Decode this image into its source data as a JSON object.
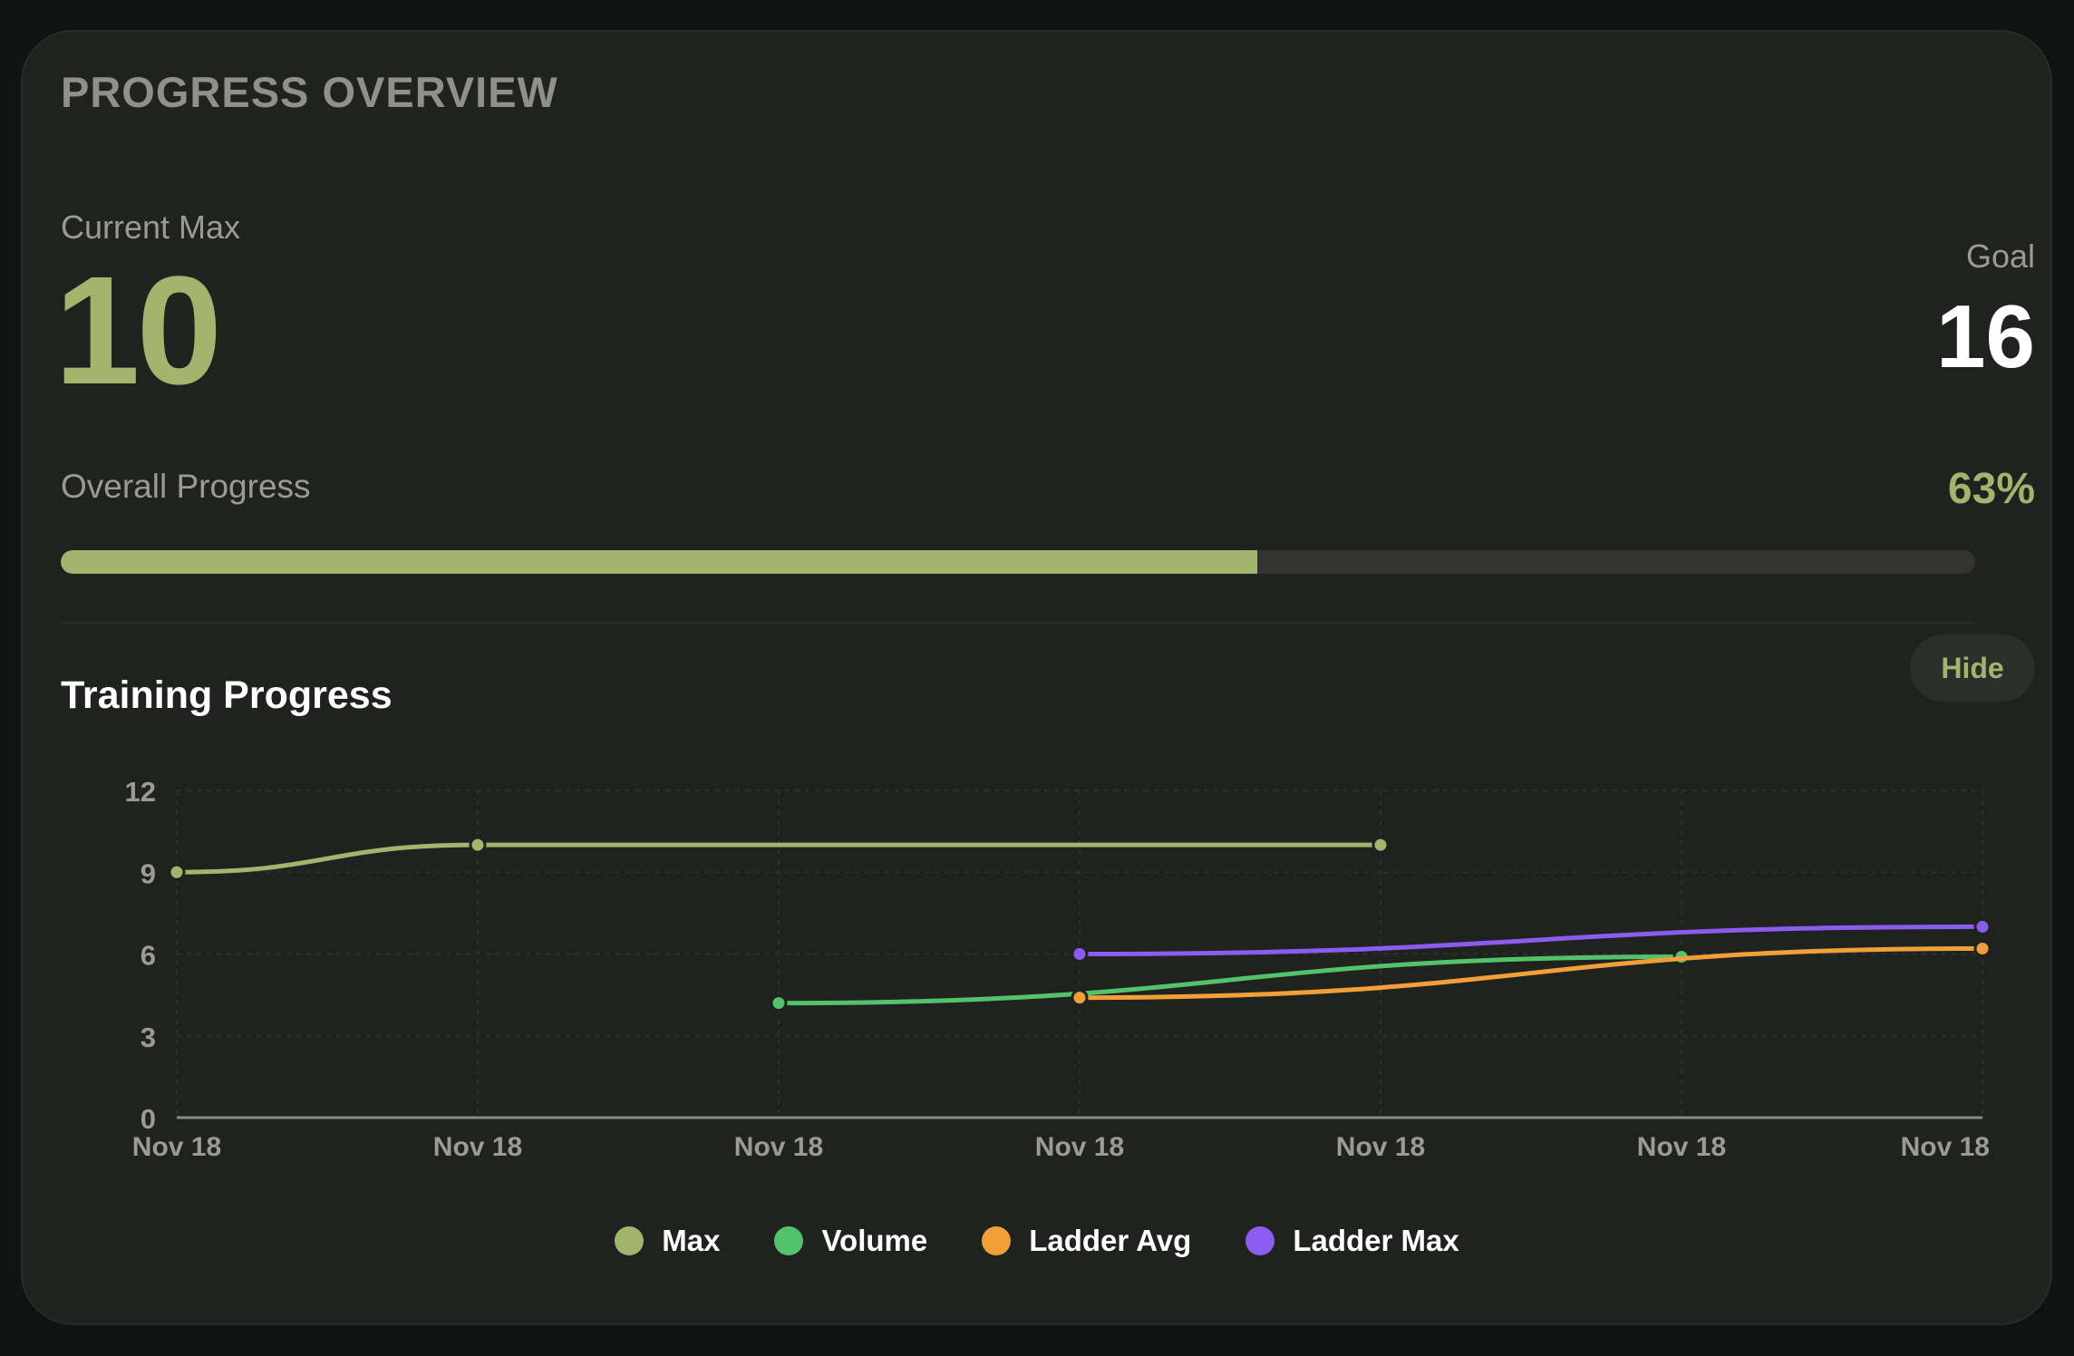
{
  "overview": {
    "title": "PROGRESS OVERVIEW",
    "current_max_label": "Current Max",
    "current_max_value": "10",
    "goal_label": "Goal",
    "goal_value": "16",
    "overall_progress_label": "Overall Progress",
    "overall_progress_text": "63%",
    "overall_progress_fraction": 0.625
  },
  "training": {
    "title": "Training Progress",
    "hide_label": "Hide"
  },
  "colors": {
    "accent": "#a3b56d",
    "max": "#a3b56d",
    "volume": "#52c26b",
    "ladder_avg": "#f0a037",
    "ladder_max": "#8a5cf0"
  },
  "chart_data": {
    "type": "line",
    "categories": [
      "Nov 18",
      "Nov 18",
      "Nov 18",
      "Nov 18",
      "Nov 18",
      "Nov 18",
      "Nov 18"
    ],
    "ylim": [
      0,
      12
    ],
    "yticks": [
      "0",
      "3",
      "6",
      "9",
      "12"
    ],
    "grid": true,
    "legend_position": "bottom",
    "series": [
      {
        "name": "Max",
        "color": "#a3b56d",
        "points": [
          [
            0,
            9
          ],
          [
            1,
            10
          ],
          [
            4,
            10
          ]
        ]
      },
      {
        "name": "Volume",
        "color": "#52c26b",
        "points": [
          [
            2,
            4.2
          ],
          [
            5,
            5.9
          ]
        ]
      },
      {
        "name": "Ladder Avg",
        "color": "#f0a037",
        "points": [
          [
            3,
            4.4
          ],
          [
            6,
            6.2
          ]
        ]
      },
      {
        "name": "Ladder Max",
        "color": "#8a5cf0",
        "points": [
          [
            3,
            6
          ],
          [
            6,
            7
          ]
        ]
      }
    ]
  }
}
